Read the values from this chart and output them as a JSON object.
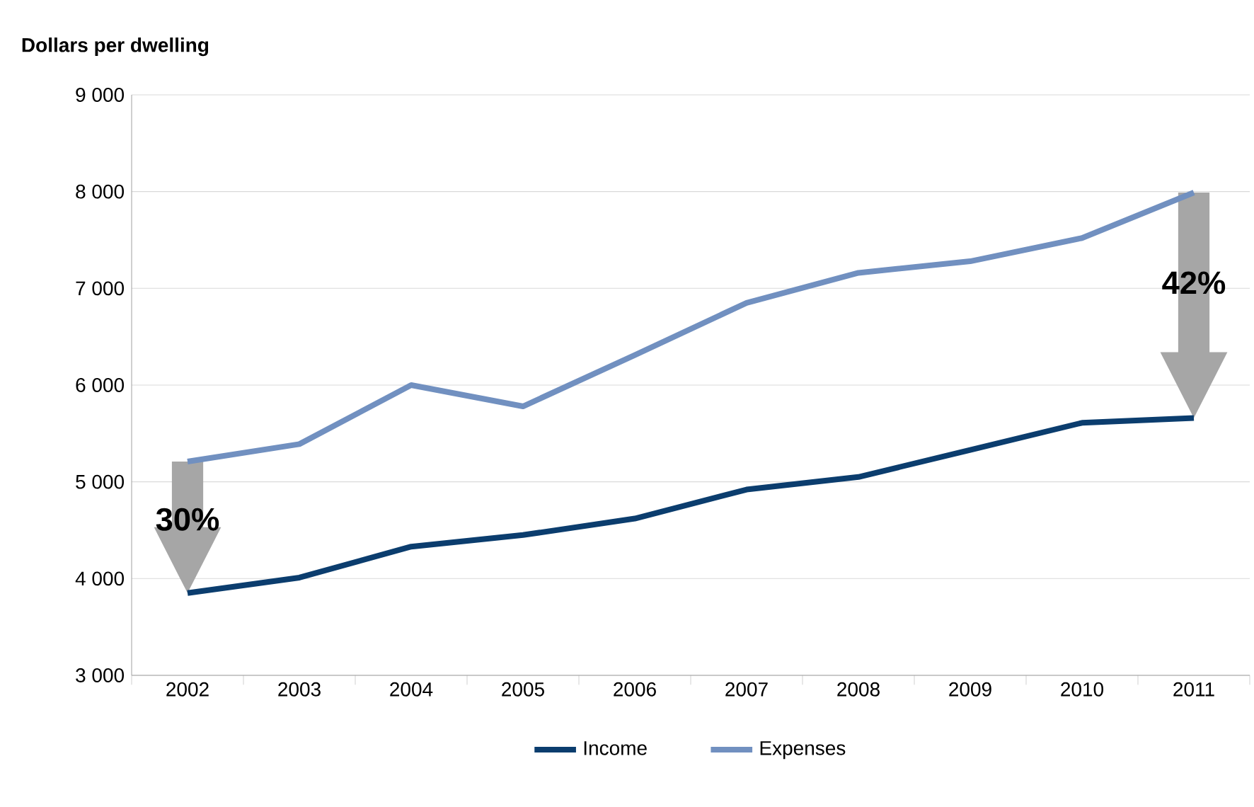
{
  "chart_data": {
    "type": "line",
    "ylabel": "Dollars per dwelling",
    "categories": [
      "2002",
      "2003",
      "2004",
      "2005",
      "2006",
      "2007",
      "2008",
      "2009",
      "2010",
      "2011"
    ],
    "series": [
      {
        "name": "Income",
        "color": "#0b3d6e",
        "values": [
          3850,
          4010,
          4330,
          4450,
          4620,
          4920,
          5050,
          5330,
          5610,
          5660
        ]
      },
      {
        "name": "Expenses",
        "color": "#7190c0",
        "values": [
          5210,
          5390,
          6000,
          5780,
          6310,
          6850,
          7160,
          7280,
          7520,
          7990
        ]
      }
    ],
    "ylim": [
      3000,
      9000
    ],
    "yticks": [
      {
        "value": 3000,
        "label": "3 000"
      },
      {
        "value": 4000,
        "label": "4 000"
      },
      {
        "value": 5000,
        "label": "5 000"
      },
      {
        "value": 6000,
        "label": "6 000"
      },
      {
        "value": 7000,
        "label": "7 000"
      },
      {
        "value": 8000,
        "label": "8 000"
      },
      {
        "value": 9000,
        "label": "9 000"
      }
    ],
    "grid": "y",
    "legend": "bottom",
    "annotations": [
      "30%",
      "42%"
    ]
  }
}
